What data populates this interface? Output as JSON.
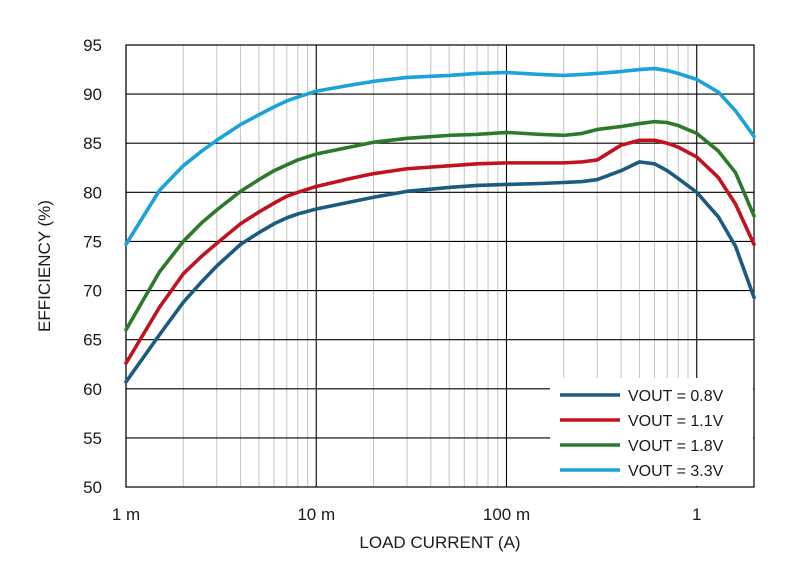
{
  "chart_data": {
    "type": "line",
    "xscale": "log",
    "xlim": [
      0.001,
      2
    ],
    "ylim": [
      50,
      95
    ],
    "grid": true,
    "legend_position": "bottom-right",
    "xlabel": "LOAD CURRENT (A)",
    "ylabel": "EFFICIENCY (%)",
    "x_ticks": [
      {
        "value": 0.001,
        "label": "1 m"
      },
      {
        "value": 0.01,
        "label": "10 m"
      },
      {
        "value": 0.1,
        "label": "100 m"
      },
      {
        "value": 1,
        "label": "1"
      }
    ],
    "y_ticks": [
      50,
      55,
      60,
      65,
      70,
      75,
      80,
      85,
      90,
      95
    ],
    "series": [
      {
        "name": "VOUT = 0.8V",
        "color": "#1b5b82",
        "points": [
          [
            0.001,
            60.7
          ],
          [
            0.0015,
            65.5
          ],
          [
            0.002,
            68.8
          ],
          [
            0.0025,
            70.9
          ],
          [
            0.003,
            72.5
          ],
          [
            0.004,
            74.7
          ],
          [
            0.005,
            75.9
          ],
          [
            0.006,
            76.8
          ],
          [
            0.007,
            77.4
          ],
          [
            0.008,
            77.8
          ],
          [
            0.01,
            78.3
          ],
          [
            0.015,
            79.0
          ],
          [
            0.02,
            79.5
          ],
          [
            0.03,
            80.1
          ],
          [
            0.05,
            80.5
          ],
          [
            0.07,
            80.7
          ],
          [
            0.1,
            80.8
          ],
          [
            0.15,
            80.9
          ],
          [
            0.2,
            81.0
          ],
          [
            0.25,
            81.1
          ],
          [
            0.3,
            81.3
          ],
          [
            0.4,
            82.2
          ],
          [
            0.5,
            83.1
          ],
          [
            0.6,
            82.9
          ],
          [
            0.7,
            82.2
          ],
          [
            0.8,
            81.4
          ],
          [
            1.0,
            80.0
          ],
          [
            1.3,
            77.5
          ],
          [
            1.6,
            74.5
          ],
          [
            2.0,
            69.3
          ]
        ]
      },
      {
        "name": "VOUT = 1.1V",
        "color": "#c1121f",
        "points": [
          [
            0.001,
            62.6
          ],
          [
            0.0015,
            68.3
          ],
          [
            0.002,
            71.7
          ],
          [
            0.0025,
            73.5
          ],
          [
            0.003,
            74.8
          ],
          [
            0.004,
            76.8
          ],
          [
            0.005,
            78.0
          ],
          [
            0.006,
            78.9
          ],
          [
            0.007,
            79.6
          ],
          [
            0.008,
            80.0
          ],
          [
            0.01,
            80.6
          ],
          [
            0.015,
            81.4
          ],
          [
            0.02,
            81.9
          ],
          [
            0.03,
            82.4
          ],
          [
            0.05,
            82.7
          ],
          [
            0.07,
            82.9
          ],
          [
            0.1,
            83.0
          ],
          [
            0.15,
            83.0
          ],
          [
            0.2,
            83.0
          ],
          [
            0.25,
            83.1
          ],
          [
            0.3,
            83.3
          ],
          [
            0.4,
            84.8
          ],
          [
            0.5,
            85.3
          ],
          [
            0.6,
            85.3
          ],
          [
            0.7,
            85.0
          ],
          [
            0.8,
            84.6
          ],
          [
            1.0,
            83.6
          ],
          [
            1.3,
            81.5
          ],
          [
            1.6,
            78.8
          ],
          [
            2.0,
            74.7
          ]
        ]
      },
      {
        "name": "VOUT = 1.8V",
        "color": "#2a7a2a",
        "points": [
          [
            0.001,
            66.0
          ],
          [
            0.0015,
            71.9
          ],
          [
            0.002,
            75.0
          ],
          [
            0.0025,
            76.9
          ],
          [
            0.003,
            78.2
          ],
          [
            0.004,
            80.1
          ],
          [
            0.005,
            81.3
          ],
          [
            0.006,
            82.2
          ],
          [
            0.007,
            82.8
          ],
          [
            0.008,
            83.3
          ],
          [
            0.01,
            83.9
          ],
          [
            0.015,
            84.6
          ],
          [
            0.02,
            85.1
          ],
          [
            0.03,
            85.5
          ],
          [
            0.05,
            85.8
          ],
          [
            0.07,
            85.9
          ],
          [
            0.1,
            86.1
          ],
          [
            0.15,
            85.9
          ],
          [
            0.2,
            85.8
          ],
          [
            0.25,
            86.0
          ],
          [
            0.3,
            86.4
          ],
          [
            0.4,
            86.7
          ],
          [
            0.5,
            87.0
          ],
          [
            0.6,
            87.2
          ],
          [
            0.7,
            87.1
          ],
          [
            0.8,
            86.8
          ],
          [
            1.0,
            86.0
          ],
          [
            1.3,
            84.2
          ],
          [
            1.6,
            82.0
          ],
          [
            2.0,
            77.6
          ]
        ]
      },
      {
        "name": "VOUT = 3.3V",
        "color": "#1aa3d9",
        "points": [
          [
            0.001,
            74.7
          ],
          [
            0.0015,
            80.2
          ],
          [
            0.002,
            82.7
          ],
          [
            0.0025,
            84.2
          ],
          [
            0.003,
            85.3
          ],
          [
            0.004,
            86.9
          ],
          [
            0.005,
            87.9
          ],
          [
            0.006,
            88.7
          ],
          [
            0.007,
            89.3
          ],
          [
            0.008,
            89.7
          ],
          [
            0.01,
            90.3
          ],
          [
            0.015,
            90.9
          ],
          [
            0.02,
            91.3
          ],
          [
            0.03,
            91.7
          ],
          [
            0.05,
            91.9
          ],
          [
            0.07,
            92.1
          ],
          [
            0.1,
            92.2
          ],
          [
            0.15,
            92.0
          ],
          [
            0.2,
            91.9
          ],
          [
            0.25,
            92.0
          ],
          [
            0.3,
            92.1
          ],
          [
            0.4,
            92.3
          ],
          [
            0.5,
            92.5
          ],
          [
            0.6,
            92.6
          ],
          [
            0.7,
            92.4
          ],
          [
            0.8,
            92.1
          ],
          [
            1.0,
            91.5
          ],
          [
            1.3,
            90.2
          ],
          [
            1.6,
            88.3
          ],
          [
            2.0,
            85.7
          ]
        ]
      }
    ]
  }
}
